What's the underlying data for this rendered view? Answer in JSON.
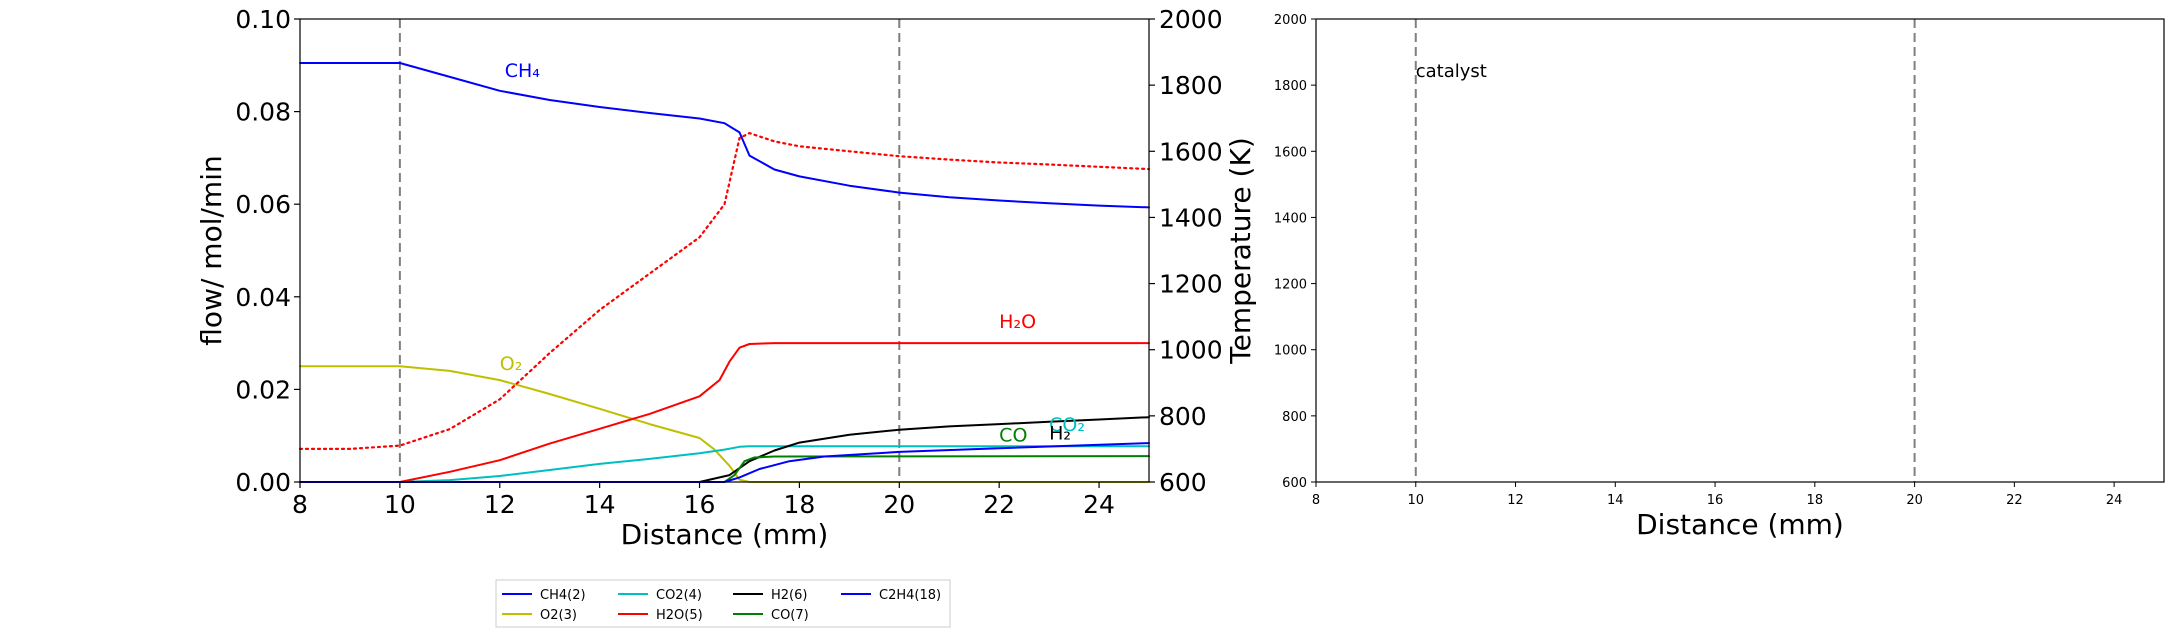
{
  "chart_data": [
    {
      "type": "line",
      "xlabel": "Distance (mm)",
      "ylabel": "flow/ mol/min",
      "y2label": "Temperature (K)",
      "xlim": [
        8,
        25
      ],
      "ylim": [
        0,
        0.1
      ],
      "y2lim": [
        600,
        2000
      ],
      "xticks": [
        "8",
        "10",
        "12",
        "14",
        "16",
        "18",
        "20",
        "22",
        "24"
      ],
      "yticks": [
        "0.00",
        "0.02",
        "0.04",
        "0.06",
        "0.08",
        "0.10"
      ],
      "y2ticks": [
        "600",
        "800",
        "1000",
        "1200",
        "1400",
        "1600",
        "1800",
        "2000"
      ],
      "vlines": [
        10,
        20
      ],
      "grid": false,
      "legend_position": "bottom-center",
      "series": [
        {
          "name": "CH4(2)",
          "color": "#0000ff",
          "x": [
            8,
            10,
            11,
            12,
            13,
            14,
            15,
            16,
            16.5,
            16.8,
            17,
            17.5,
            18,
            19,
            20,
            21,
            22,
            23,
            24,
            25
          ],
          "values": [
            0.0905,
            0.0905,
            0.0875,
            0.0845,
            0.0825,
            0.081,
            0.0797,
            0.0785,
            0.0775,
            0.0755,
            0.0705,
            0.0675,
            0.066,
            0.064,
            0.0625,
            0.0615,
            0.0608,
            0.0602,
            0.0597,
            0.0593
          ]
        },
        {
          "name": "O2(3)",
          "color": "#bfbf00",
          "x": [
            8,
            10,
            11,
            12,
            13,
            14,
            15,
            16,
            16.3,
            16.6,
            16.8,
            17,
            25
          ],
          "values": [
            0.025,
            0.025,
            0.024,
            0.022,
            0.019,
            0.0158,
            0.0125,
            0.0095,
            0.007,
            0.0035,
            0.0005,
            0,
            0
          ]
        },
        {
          "name": "CO2(4)",
          "color": "#00bfbf",
          "x": [
            8,
            10,
            11,
            12,
            13,
            14,
            15,
            16,
            16.5,
            16.8,
            17,
            25
          ],
          "values": [
            0,
            0,
            0.0004,
            0.0013,
            0.0026,
            0.0039,
            0.005,
            0.0062,
            0.007,
            0.0076,
            0.0077,
            0.0077
          ]
        },
        {
          "name": "H2O(5)",
          "color": "#ff0000",
          "x": [
            8,
            10,
            11,
            12,
            13,
            14,
            15,
            16,
            16.4,
            16.6,
            16.8,
            17,
            17.5,
            25
          ],
          "values": [
            0,
            0,
            0.0022,
            0.0047,
            0.0083,
            0.0115,
            0.0147,
            0.0185,
            0.022,
            0.026,
            0.029,
            0.0298,
            0.03,
            0.03
          ]
        },
        {
          "name": "H2(6)",
          "color": "#000000",
          "x": [
            8,
            16,
            16.6,
            17,
            17.5,
            18,
            19,
            20,
            21,
            22,
            23,
            24,
            25
          ],
          "values": [
            0,
            0,
            0.0015,
            0.0045,
            0.0068,
            0.0085,
            0.0102,
            0.0113,
            0.012,
            0.0125,
            0.013,
            0.0135,
            0.014
          ]
        },
        {
          "name": "CO(7)",
          "color": "#008000",
          "x": [
            8,
            16.5,
            16.7,
            16.9,
            17.1,
            17.5,
            25
          ],
          "values": [
            0,
            0,
            0.0015,
            0.0045,
            0.0053,
            0.0055,
            0.0056
          ]
        },
        {
          "name": "C2H4(18)",
          "color": "#0000ff",
          "x": [
            8,
            16.5,
            16.8,
            17.2,
            17.8,
            18.5,
            20,
            22,
            25
          ],
          "values": [
            0,
            0,
            0.001,
            0.0028,
            0.0045,
            0.0055,
            0.0065,
            0.0073,
            0.0084
          ]
        },
        {
          "name": "",
          "axis": "y2",
          "style": "dotted",
          "color": "#ff0000",
          "x": [
            8,
            9,
            10,
            11,
            12,
            13,
            14,
            15,
            16,
            16.5,
            16.8,
            17,
            17.5,
            18,
            19,
            20,
            21,
            22,
            23,
            24,
            25
          ],
          "values": [
            700,
            700,
            710,
            760,
            850,
            990,
            1120,
            1230,
            1340,
            1440,
            1640,
            1655,
            1630,
            1615,
            1600,
            1585,
            1575,
            1566,
            1560,
            1553,
            1546
          ]
        }
      ],
      "annotations": [
        {
          "text": "CH₄",
          "x": 12.1,
          "y": 0.0875,
          "color": "#0000ff"
        },
        {
          "text": "O₂",
          "x": 12.0,
          "y": 0.0242,
          "color": "#bfbf00"
        },
        {
          "text": "H₂O",
          "x": 22.0,
          "y": 0.0333,
          "color": "#ff0000"
        },
        {
          "text": "CO",
          "x": 22.0,
          "y": 0.0087,
          "color": "#008000"
        },
        {
          "text": "CO₂",
          "x": 23.0,
          "y": 0.011,
          "color": "#00bfbf"
        },
        {
          "text": "H₂",
          "x": 23.0,
          "y": 0.0092,
          "color": "#000000"
        }
      ]
    },
    {
      "type": "line",
      "xlabel": "Distance (mm)",
      "ylabel": "",
      "xlim": [
        8,
        25
      ],
      "ylim": [
        600,
        2000
      ],
      "xticks": [
        "8",
        "10",
        "12",
        "14",
        "16",
        "18",
        "20",
        "22",
        "24"
      ],
      "yticks": [
        "600",
        "800",
        "1000",
        "1200",
        "1400",
        "1600",
        "1800",
        "2000"
      ],
      "vlines": [
        10,
        20
      ],
      "series": [],
      "annotations": [
        {
          "text": "catalyst",
          "x": 10.0,
          "y": 1825,
          "color": "#000000"
        }
      ]
    }
  ]
}
